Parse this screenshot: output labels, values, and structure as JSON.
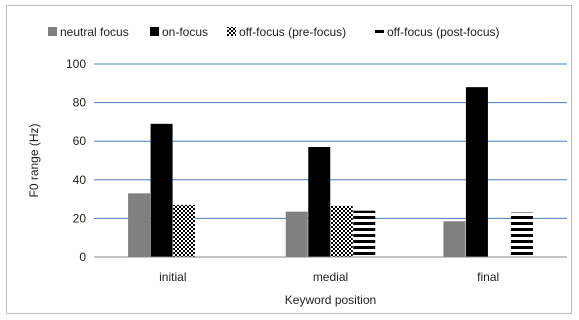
{
  "chart_data": {
    "type": "bar",
    "categories": [
      "initial",
      "medial",
      "final"
    ],
    "series": [
      {
        "name": "neutral focus",
        "pattern": "solid-gray",
        "color": "#808080",
        "values": [
          33,
          23.5,
          18.5
        ]
      },
      {
        "name": "on-focus",
        "pattern": "solid-black",
        "color": "#000000",
        "values": [
          69,
          57,
          88
        ]
      },
      {
        "name": "off-focus (pre-focus)",
        "pattern": "checker",
        "color": "#000000",
        "values": [
          27,
          26.5,
          null
        ]
      },
      {
        "name": "off-focus (post-focus)",
        "pattern": "horizontal-stripes",
        "color": "#000000",
        "values": [
          null,
          24,
          23
        ]
      }
    ],
    "xlabel": "Keyword position",
    "ylabel": "F0 range (Hz)",
    "ylim": [
      0,
      100
    ],
    "yticks": [
      0,
      20,
      40,
      60,
      80,
      100
    ],
    "ytick_labels": [
      "0",
      "20",
      "40",
      "60",
      "80",
      "100"
    ],
    "gridlines": true,
    "gridline_color": "#4a7ebb",
    "legend_position": "top"
  }
}
